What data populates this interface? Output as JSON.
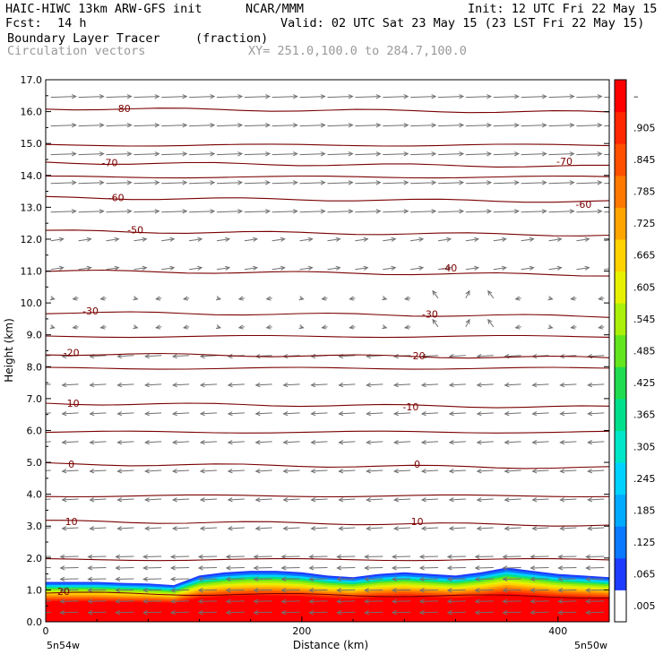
{
  "header": {
    "model_title": "HAIC-HIWC 13km ARW-GFS init",
    "org": "NCAR/MMM",
    "init": "Init: 12 UTC Fri 22 May 15",
    "fcst_label": "Fcst:",
    "fcst_value": "14 h",
    "valid": "Valid: 02 UTC Sat 23 May 15 (23 LST Fri 22 May 15)",
    "field_name": "Boundary Layer Tracer",
    "field_units": "(fraction)",
    "vector_name": "Circulation vectors",
    "cross_section": "XY= 251.0,100.0 to 284.7,100.0"
  },
  "colors": {
    "contour": "#7a0000",
    "vector": "#707070",
    "frame": "#000000"
  },
  "chart_data": {
    "type": "heatmap",
    "xlabel": "Distance (km)",
    "ylabel": "Height (km)",
    "xlim": [
      0,
      440
    ],
    "ylim": [
      0,
      17
    ],
    "x_ticks": [
      0,
      200,
      400
    ],
    "y_ticks": [
      "0.0",
      "1.0",
      "2.0",
      "3.0",
      "4.0",
      "5.0",
      "6.0",
      "7.0",
      "8.0",
      "9.0",
      "10.0",
      "11.0",
      "12.0",
      "13.0",
      "14.0",
      "15.0",
      "16.0",
      "17.0"
    ],
    "x_endpoint_labels": [
      "5n54w",
      "5n50w"
    ],
    "temperature_contours": [
      {
        "label": "20",
        "height": 0.9
      },
      {
        "label": "10",
        "height": 3.15
      },
      {
        "label": "0",
        "height": 4.95
      },
      {
        "label": "-10",
        "height": 6.85
      },
      {
        "label": "-20",
        "height": 8.4
      },
      {
        "label": "-30",
        "height": 9.7
      },
      {
        "label": "-40",
        "height": 11.0
      },
      {
        "label": "-50",
        "height": 12.25
      },
      {
        "label": "-60",
        "height": 13.3
      },
      {
        "label": "-70",
        "height": 14.4
      },
      {
        "label": "-80",
        "height": 16.1
      }
    ],
    "contour_label_positions": [
      {
        "label": "20",
        "x": 14,
        "height": 0.95
      },
      {
        "label": "10",
        "x": 20,
        "height": 3.15
      },
      {
        "label": "10",
        "x": 290,
        "height": 3.15
      },
      {
        "label": "0",
        "x": 20,
        "height": 4.95
      },
      {
        "label": "0",
        "x": 290,
        "height": 4.95
      },
      {
        "label": "-10",
        "x": 20,
        "height": 6.85
      },
      {
        "label": "-10",
        "x": 285,
        "height": 6.75
      },
      {
        "label": "-20",
        "x": 20,
        "height": 8.45
      },
      {
        "label": "-20",
        "x": 290,
        "height": 8.35
      },
      {
        "label": "-30",
        "x": 35,
        "height": 9.75
      },
      {
        "label": "-30",
        "x": 300,
        "height": 9.65
      },
      {
        "label": "-40",
        "x": 315,
        "height": 11.1
      },
      {
        "label": "-50",
        "x": 70,
        "height": 12.3
      },
      {
        "label": "-60",
        "x": 55,
        "height": 13.3
      },
      {
        "label": "-60",
        "x": 420,
        "height": 13.1
      },
      {
        "label": "-70",
        "x": 50,
        "height": 14.4
      },
      {
        "label": "-70",
        "x": 405,
        "height": 14.45
      },
      {
        "label": "-80",
        "x": 60,
        "height": 16.1
      }
    ],
    "tracer_colorbar": {
      "labels": [
        ".005",
        ".065",
        ".125",
        ".185",
        ".245",
        ".305",
        ".365",
        ".425",
        ".485",
        ".545",
        ".605",
        ".665",
        ".725",
        ".785",
        ".845",
        ".905",
        "–"
      ],
      "colors": [
        "#ffffff",
        "#1e3cff",
        "#0a78ff",
        "#00aaff",
        "#00d2ff",
        "#00e6c8",
        "#00e08c",
        "#20dc50",
        "#64e61e",
        "#aaf00a",
        "#e6f000",
        "#ffd200",
        "#ffa500",
        "#ff7800",
        "#ff5000",
        "#ff2800",
        "#ff0000"
      ]
    },
    "tracer_layer_top_km": [
      1.25,
      1.25,
      1.25,
      1.22,
      1.2,
      1.15,
      1.45,
      1.55,
      1.6,
      1.6,
      1.55,
      1.45,
      1.4,
      1.5,
      1.55,
      1.5,
      1.45,
      1.55,
      1.7,
      1.6,
      1.5,
      1.45,
      1.4
    ]
  }
}
